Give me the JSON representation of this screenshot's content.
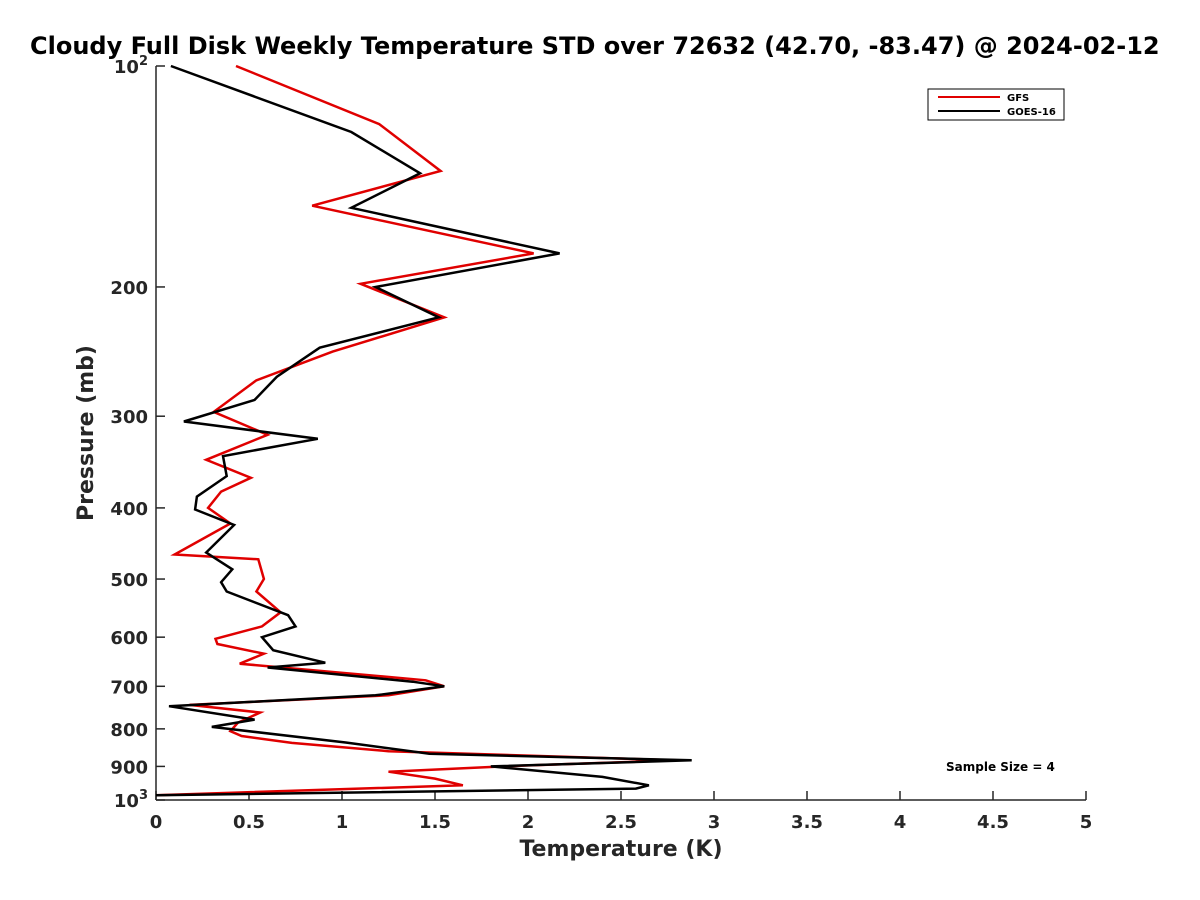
{
  "chart_data": {
    "type": "line",
    "title": "Cloudy Full Disk Weekly Temperature STD over 72632 (42.70, -83.47) @ 2024-02-12",
    "xlabel": "Temperature (K)",
    "ylabel": "Pressure (mb)",
    "xlim": [
      0,
      5
    ],
    "ylim": [
      1000,
      100
    ],
    "y_scale": "log",
    "x_ticks": [
      "0",
      "0.5",
      "1",
      "1.5",
      "2",
      "2.5",
      "3",
      "3.5",
      "4",
      "4.5",
      "5"
    ],
    "y_ticks": [
      {
        "value": 100,
        "base": "10",
        "exp": "2"
      },
      {
        "value": 200,
        "label": "200"
      },
      {
        "value": 300,
        "label": "300"
      },
      {
        "value": 400,
        "label": "400"
      },
      {
        "value": 500,
        "label": "500"
      },
      {
        "value": 600,
        "label": "600"
      },
      {
        "value": 700,
        "label": "700"
      },
      {
        "value": 800,
        "label": "800"
      },
      {
        "value": 900,
        "label": "900"
      },
      {
        "value": 1000,
        "base": "10",
        "exp": "3"
      }
    ],
    "legend_position": "top-right",
    "annotation": "Sample Size = 4",
    "series": [
      {
        "name": "GFS",
        "color": "#e00000",
        "points": [
          [
            0.43,
            100
          ],
          [
            1.2,
            120
          ],
          [
            1.53,
            139
          ],
          [
            0.84,
            155
          ],
          [
            2.03,
            180
          ],
          [
            1.1,
            198
          ],
          [
            1.55,
            220
          ],
          [
            0.95,
            245
          ],
          [
            0.54,
            268
          ],
          [
            0.31,
            296
          ],
          [
            0.6,
            318
          ],
          [
            0.27,
            344
          ],
          [
            0.51,
            364
          ],
          [
            0.35,
            380
          ],
          [
            0.28,
            400
          ],
          [
            0.4,
            420
          ],
          [
            0.1,
            463
          ],
          [
            0.55,
            470
          ],
          [
            0.58,
            500
          ],
          [
            0.54,
            520
          ],
          [
            0.67,
            555
          ],
          [
            0.57,
            580
          ],
          [
            0.32,
            603
          ],
          [
            0.33,
            613
          ],
          [
            0.58,
            632
          ],
          [
            0.45,
            652
          ],
          [
            1.45,
            687
          ],
          [
            1.55,
            700
          ],
          [
            1.25,
            720
          ],
          [
            0.18,
            742
          ],
          [
            0.56,
            760
          ],
          [
            0.44,
            785
          ],
          [
            0.4,
            806
          ],
          [
            0.46,
            818
          ],
          [
            0.73,
            836
          ],
          [
            1.25,
            858
          ],
          [
            2.8,
            883
          ],
          [
            1.95,
            898
          ],
          [
            1.25,
            915
          ],
          [
            1.5,
            935
          ],
          [
            1.65,
            955
          ],
          [
            0.0,
            985
          ]
        ]
      },
      {
        "name": "GOES-16",
        "color": "#000000",
        "points": [
          [
            0.08,
            100
          ],
          [
            1.05,
            123
          ],
          [
            1.42,
            140
          ],
          [
            1.05,
            156
          ],
          [
            2.17,
            180
          ],
          [
            1.18,
            200
          ],
          [
            1.52,
            220
          ],
          [
            0.88,
            242
          ],
          [
            0.65,
            265
          ],
          [
            0.53,
            285
          ],
          [
            0.15,
            305
          ],
          [
            0.87,
            322
          ],
          [
            0.36,
            340
          ],
          [
            0.38,
            362
          ],
          [
            0.22,
            386
          ],
          [
            0.21,
            402
          ],
          [
            0.42,
            422
          ],
          [
            0.27,
            460
          ],
          [
            0.41,
            485
          ],
          [
            0.35,
            505
          ],
          [
            0.38,
            520
          ],
          [
            0.71,
            560
          ],
          [
            0.75,
            580
          ],
          [
            0.57,
            600
          ],
          [
            0.63,
            625
          ],
          [
            0.91,
            650
          ],
          [
            0.6,
            660
          ],
          [
            1.38,
            690
          ],
          [
            1.55,
            700
          ],
          [
            1.18,
            720
          ],
          [
            0.07,
            745
          ],
          [
            0.53,
            777
          ],
          [
            0.3,
            795
          ],
          [
            1.02,
            835
          ],
          [
            1.47,
            865
          ],
          [
            2.88,
            883
          ],
          [
            1.8,
            900
          ],
          [
            2.4,
            930
          ],
          [
            2.65,
            955
          ],
          [
            2.58,
            965
          ],
          [
            0.0,
            985
          ]
        ]
      }
    ]
  }
}
